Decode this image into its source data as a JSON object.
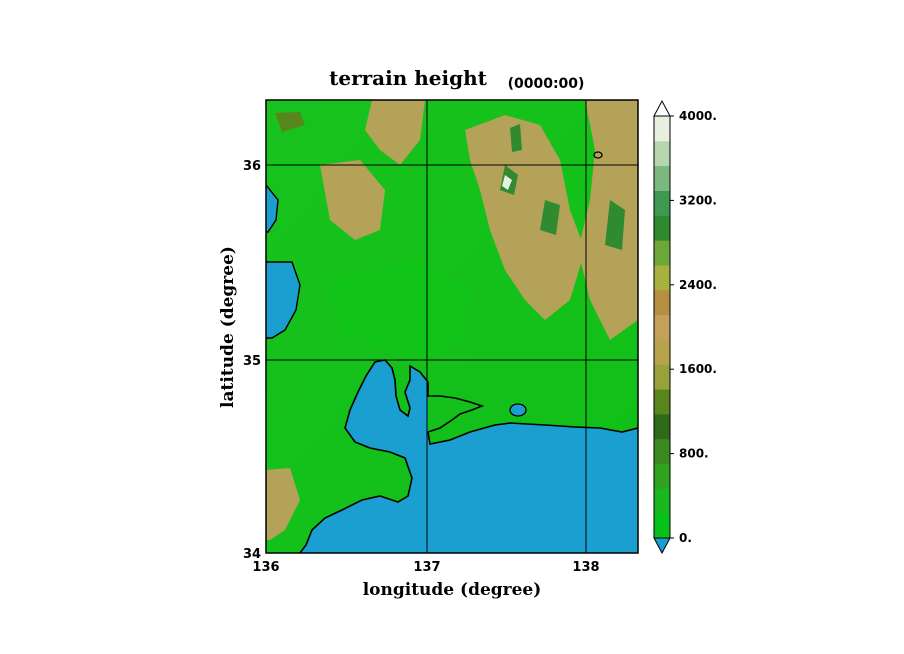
{
  "chart_data": {
    "type": "heatmap",
    "title": "terrain height",
    "subtitle": "(0000:00)",
    "xlabel": "longitude (degree)",
    "ylabel": "latitude  (degree)",
    "xlim": [
      136.0,
      138.33
    ],
    "ylim": [
      34.0,
      36.33
    ],
    "x_ticks": [
      {
        "value": 136,
        "label": "136"
      },
      {
        "value": 137,
        "label": "137"
      },
      {
        "value": 138,
        "label": "138"
      }
    ],
    "y_ticks": [
      {
        "value": 34,
        "label": "34"
      },
      {
        "value": 35,
        "label": "35"
      },
      {
        "value": 36,
        "label": "36"
      }
    ],
    "grid": true,
    "colorbar": {
      "min": 0,
      "max": 4000,
      "ticks": [
        {
          "value": 0,
          "label": "0."
        },
        {
          "value": 800,
          "label": "800."
        },
        {
          "value": 1600,
          "label": "1600."
        },
        {
          "value": 2400,
          "label": "2400."
        },
        {
          "value": 3200,
          "label": "3200."
        },
        {
          "value": 4000,
          "label": "4000."
        }
      ],
      "under_color": "#1a9fd0",
      "over_color": "#ffffff",
      "colors": [
        "#08c21a",
        "#18b81e",
        "#2fa41f",
        "#3a8a20",
        "#2f6a18",
        "#58851c",
        "#9aa03a",
        "#b8a24e",
        "#c2a25a",
        "#b59040",
        "#a8b040",
        "#6ca838",
        "#2f8a30",
        "#3e9a50",
        "#7ab880",
        "#b6d6b0",
        "#e8f0e0"
      ]
    },
    "data_note": "",
    "under_color_name": "sea"
  }
}
